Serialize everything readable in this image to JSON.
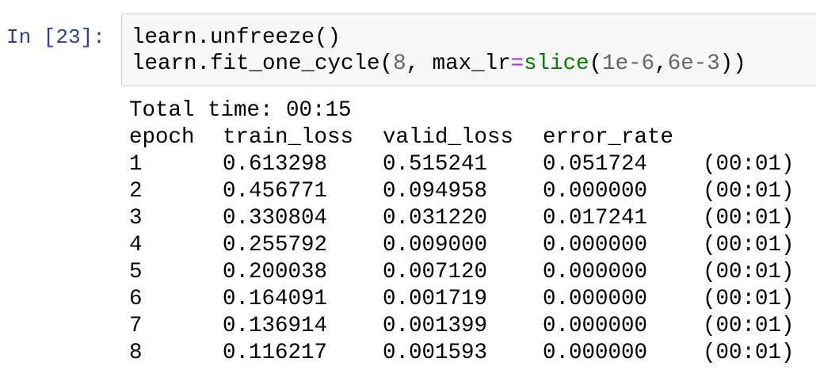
{
  "prompt": "In [23]:",
  "code": {
    "lines": [
      [
        {
          "text": "learn.unfreeze()"
        }
      ],
      [
        {
          "text": "learn.fit_one_cycle("
        },
        {
          "text": "8",
          "color": "#666666"
        },
        {
          "text": ", max_lr"
        },
        {
          "text": "=",
          "color": "#aa22ff"
        },
        {
          "text": "slice",
          "color": "#008000"
        },
        {
          "text": "("
        },
        {
          "text": "1e-6",
          "color": "#666666"
        },
        {
          "text": ","
        },
        {
          "text": "6e-3",
          "color": "#666666"
        },
        {
          "text": "))"
        }
      ]
    ]
  },
  "output": {
    "total_time": "Total time: 00:15",
    "table": {
      "header": [
        "epoch",
        "train_loss",
        "valid_loss",
        "error_rate"
      ],
      "rows": [
        [
          "1",
          "0.613298",
          "0.515241",
          "0.051724",
          "(00:01)"
        ],
        [
          "2",
          "0.456771",
          "0.094958",
          "0.000000",
          "(00:01)"
        ],
        [
          "3",
          "0.330804",
          "0.031220",
          "0.017241",
          "(00:01)"
        ],
        [
          "4",
          "0.255792",
          "0.009000",
          "0.000000",
          "(00:01)"
        ],
        [
          "5",
          "0.200038",
          "0.007120",
          "0.000000",
          "(00:01)"
        ],
        [
          "6",
          "0.164091",
          "0.001719",
          "0.000000",
          "(00:01)"
        ],
        [
          "7",
          "0.136914",
          "0.001399",
          "0.000000",
          "(00:01)"
        ],
        [
          "8",
          "0.116217",
          "0.001593",
          "0.000000",
          "(00:01)"
        ]
      ]
    }
  }
}
